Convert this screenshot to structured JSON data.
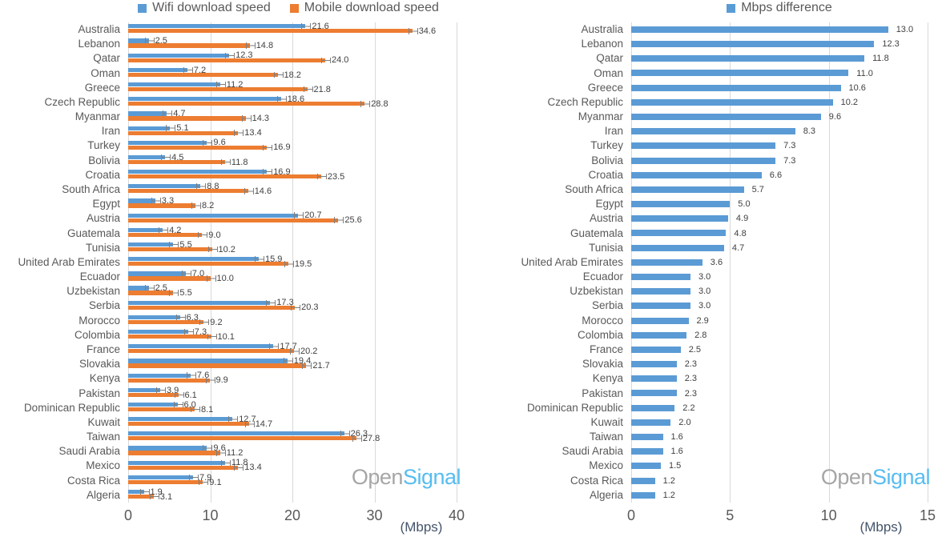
{
  "colors": {
    "wifi": "#5B9BD5",
    "mobile": "#ED7D31",
    "diff": "#5B9BD5",
    "grid": "#D9D9D9",
    "category_text": "#595959",
    "value_text": "#404040",
    "tick_text": "#595959",
    "mbps_text": "#44546A",
    "wm_open": "#A6A6A6",
    "wm_signal": "#56BDF0",
    "background": "#FFFFFF"
  },
  "watermark": {
    "open": "Open",
    "signal": "Signal"
  },
  "chart_data": [
    {
      "type": "bar",
      "orientation": "horizontal",
      "legend_position": "top",
      "grid": true,
      "error_bars": true,
      "xlabel": "(Mbps)",
      "xticks": [
        0,
        10,
        20,
        30,
        40
      ],
      "xlim": [
        0,
        40
      ],
      "categories": [
        "Australia",
        "Lebanon",
        "Qatar",
        "Oman",
        "Greece",
        "Czech Republic",
        "Myanmar",
        "Iran",
        "Turkey",
        "Bolivia",
        "Croatia",
        "South Africa",
        "Egypt",
        "Austria",
        "Guatemala",
        "Tunisia",
        "United Arab Emirates",
        "Ecuador",
        "Uzbekistan",
        "Serbia",
        "Morocco",
        "Colombia",
        "France",
        "Slovakia",
        "Kenya",
        "Pakistan",
        "Dominican Republic",
        "Kuwait",
        "Taiwan",
        "Saudi Arabia",
        "Mexico",
        "Costa Rica",
        "Algeria"
      ],
      "series": [
        {
          "name": "Wifi download speed",
          "values": [
            21.6,
            2.5,
            12.3,
            7.2,
            11.2,
            18.6,
            4.7,
            5.1,
            9.6,
            4.5,
            16.9,
            8.8,
            3.3,
            20.7,
            4.2,
            5.5,
            15.9,
            7.0,
            2.5,
            17.3,
            6.3,
            7.3,
            17.7,
            19.4,
            7.6,
            3.9,
            6.0,
            12.7,
            26.3,
            9.6,
            11.8,
            7.9,
            1.9
          ]
        },
        {
          "name": "Mobile download speed",
          "values": [
            34.6,
            14.8,
            24.0,
            18.2,
            21.8,
            28.8,
            14.3,
            13.4,
            16.9,
            11.8,
            23.5,
            14.6,
            8.2,
            25.6,
            9.0,
            10.2,
            19.5,
            10.0,
            5.5,
            20.3,
            9.2,
            10.1,
            20.2,
            21.7,
            9.9,
            6.1,
            8.1,
            14.7,
            27.8,
            11.2,
            13.4,
            9.1,
            3.1
          ]
        }
      ],
      "watermark_text": "OpenSignal"
    },
    {
      "type": "bar",
      "orientation": "horizontal",
      "legend_position": "top",
      "grid": true,
      "error_bars": false,
      "xlabel": "(Mbps)",
      "xticks": [
        0,
        5,
        10,
        15
      ],
      "xlim": [
        0,
        15
      ],
      "categories": [
        "Australia",
        "Lebanon",
        "Qatar",
        "Oman",
        "Greece",
        "Czech Republic",
        "Myanmar",
        "Iran",
        "Turkey",
        "Bolivia",
        "Croatia",
        "South Africa",
        "Egypt",
        "Austria",
        "Guatemala",
        "Tunisia",
        "United Arab Emirates",
        "Ecuador",
        "Uzbekistan",
        "Serbia",
        "Morocco",
        "Colombia",
        "France",
        "Slovakia",
        "Kenya",
        "Pakistan",
        "Dominican Republic",
        "Kuwait",
        "Taiwan",
        "Saudi Arabia",
        "Mexico",
        "Costa Rica",
        "Algeria"
      ],
      "series": [
        {
          "name": "Mbps difference",
          "values": [
            13.0,
            12.3,
            11.8,
            11.0,
            10.6,
            10.2,
            9.6,
            8.3,
            7.3,
            7.3,
            6.6,
            5.7,
            5.0,
            4.9,
            4.8,
            4.7,
            3.6,
            3.0,
            3.0,
            3.0,
            2.9,
            2.8,
            2.5,
            2.3,
            2.3,
            2.3,
            2.2,
            2.0,
            1.6,
            1.6,
            1.5,
            1.2,
            1.2
          ]
        }
      ],
      "watermark_text": "OpenSignal"
    }
  ]
}
